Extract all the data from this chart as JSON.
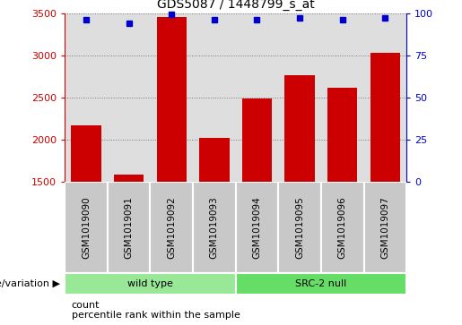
{
  "title": "GDS5087 / 1448799_s_at",
  "samples": [
    "GSM1019090",
    "GSM1019091",
    "GSM1019092",
    "GSM1019093",
    "GSM1019094",
    "GSM1019095",
    "GSM1019096",
    "GSM1019097"
  ],
  "counts": [
    2175,
    1590,
    3450,
    2020,
    2490,
    2760,
    2620,
    3030
  ],
  "percentile_ranks": [
    96,
    94,
    99,
    96,
    96,
    97,
    96,
    97
  ],
  "ylim_left": [
    1500,
    3500
  ],
  "ylim_right": [
    0,
    100
  ],
  "yticks_left": [
    1500,
    2000,
    2500,
    3000,
    3500
  ],
  "yticks_right": [
    0,
    25,
    50,
    75,
    100
  ],
  "bar_color": "#CC0000",
  "dot_color": "#0000CC",
  "col_bg_color": "#C8C8C8",
  "wt_color": "#98E898",
  "src_color": "#66DD66",
  "legend_count_label": "count",
  "legend_percentile_label": "percentile rank within the sample",
  "bottom_label": "genotype/variation",
  "wild_type_label": "wild type",
  "src2_null_label": "SRC-2 null",
  "title_fontsize": 10,
  "axis_fontsize": 7.5,
  "tick_fontsize": 8,
  "n_wild": 4,
  "n_src": 4
}
